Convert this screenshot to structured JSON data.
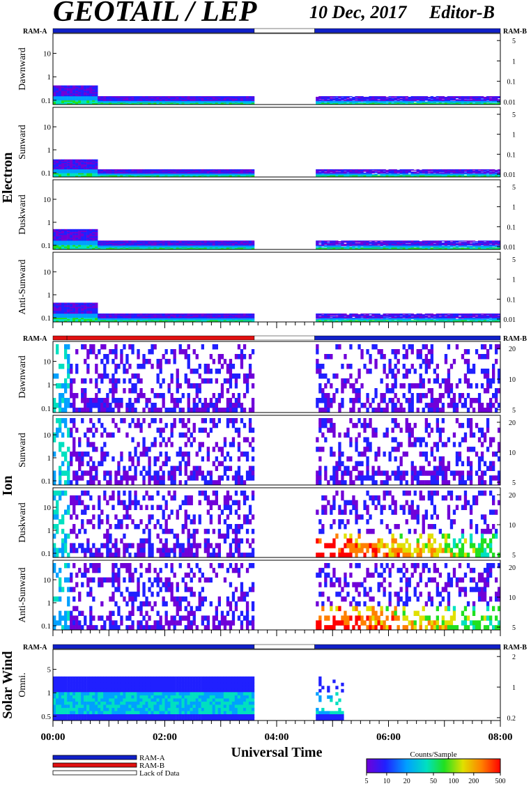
{
  "header": {
    "title": "GEOTAIL / LEP",
    "date": "10 Dec, 2017",
    "editor": "Editor-B"
  },
  "chart_data": {
    "type": "heatmap",
    "xlabel": "Universal Time",
    "x_ticks": [
      "00:00",
      "02:00",
      "04:00",
      "06:00",
      "08:00"
    ],
    "x_range_hours": [
      0,
      8
    ],
    "data_gap_hours": [
      3.6,
      4.68
    ],
    "sections": [
      {
        "name": "Electron",
        "ram_left": "RAM-A",
        "ram_right": "RAM-B",
        "ram_bar": [
          {
            "from": 0,
            "to": 3.6,
            "mode": "RAM-A"
          },
          {
            "from": 3.6,
            "to": 4.68,
            "mode": "Lack of Data"
          },
          {
            "from": 4.68,
            "to": 8,
            "mode": "RAM-A"
          }
        ],
        "panels": [
          {
            "label": "Dawnward",
            "left_ticks": [
              "10",
              "1",
              "0.1"
            ],
            "right_ticks": [
              "5",
              "1",
              "0.1",
              "0.01"
            ],
            "peak_level": 0.35
          },
          {
            "label": "Sunward",
            "left_ticks": [
              "10",
              "1",
              "0.1"
            ],
            "right_ticks": [
              "5",
              "1",
              "0.1",
              "0.01"
            ],
            "peak_level": 0.33
          },
          {
            "label": "Duskward",
            "left_ticks": [
              "10",
              "1",
              "0.1"
            ],
            "right_ticks": [
              "5",
              "1",
              "0.1",
              "0.01"
            ],
            "peak_level": 0.38
          },
          {
            "label": "Anti-Sunward",
            "left_ticks": [
              "10",
              "1",
              "0.1"
            ],
            "right_ticks": [
              "5",
              "1",
              "0.1",
              "0.01"
            ],
            "peak_level": 0.36
          }
        ]
      },
      {
        "name": "Ion",
        "ram_left": "RAM-A",
        "ram_right": "RAM-B",
        "ram_bar": [
          {
            "from": 0,
            "to": 0.25,
            "mode": "RAM-B"
          },
          {
            "from": 0.25,
            "to": 3.6,
            "mode": "RAM-B"
          },
          {
            "from": 3.6,
            "to": 4.68,
            "mode": "Lack of Data"
          },
          {
            "from": 4.68,
            "to": 8,
            "mode": "RAM-A"
          }
        ],
        "panels": [
          {
            "label": "Dawnward",
            "left_ticks": [
              "10",
              "1",
              "0.1"
            ],
            "right_ticks": [
              "20",
              "10",
              "5"
            ],
            "peak_level": 0.55
          },
          {
            "label": "Sunward",
            "left_ticks": [
              "10",
              "1",
              "0.1"
            ],
            "right_ticks": [
              "20",
              "10",
              "5"
            ],
            "peak_level": 0.45
          },
          {
            "label": "Duskward",
            "left_ticks": [
              "10",
              "1",
              "0.1"
            ],
            "right_ticks": [
              "20",
              "10",
              "5"
            ],
            "peak_level": 0.95
          },
          {
            "label": "Anti-Sunward",
            "left_ticks": [
              "10",
              "1",
              "0.1"
            ],
            "right_ticks": [
              "20",
              "10",
              "5"
            ],
            "peak_level": 1.0
          }
        ]
      },
      {
        "name": "Solar Wind",
        "ram_left": "RAM-A",
        "ram_right": "RAM-B",
        "ram_bar": [
          {
            "from": 0,
            "to": 3.6,
            "mode": "RAM-A"
          },
          {
            "from": 3.6,
            "to": 4.68,
            "mode": "Lack of Data"
          },
          {
            "from": 4.68,
            "to": 8,
            "mode": "RAM-A"
          }
        ],
        "panels": [
          {
            "label": "Omni.",
            "left_ticks": [
              "5",
              "1",
              "0.5"
            ],
            "right_ticks": [
              "2",
              "1",
              "0.2"
            ],
            "peak_level": 0.5
          }
        ]
      }
    ],
    "legend": [
      {
        "label": "RAM-A",
        "color": "#1020c8"
      },
      {
        "label": "RAM-B",
        "color": "#e01010"
      },
      {
        "label": "Lack of Data",
        "color": "#ffffff"
      }
    ],
    "colorbar": {
      "title": "Counts/Sample",
      "ticks": [
        "5",
        "10",
        "20",
        "50",
        "100",
        "200",
        "500"
      ],
      "range": [
        5,
        500
      ],
      "scale": "log",
      "colors": [
        "#7000d8",
        "#2020ff",
        "#00a0ff",
        "#00e0c0",
        "#20e020",
        "#e0e000",
        "#ff8000",
        "#ff0000"
      ]
    }
  }
}
